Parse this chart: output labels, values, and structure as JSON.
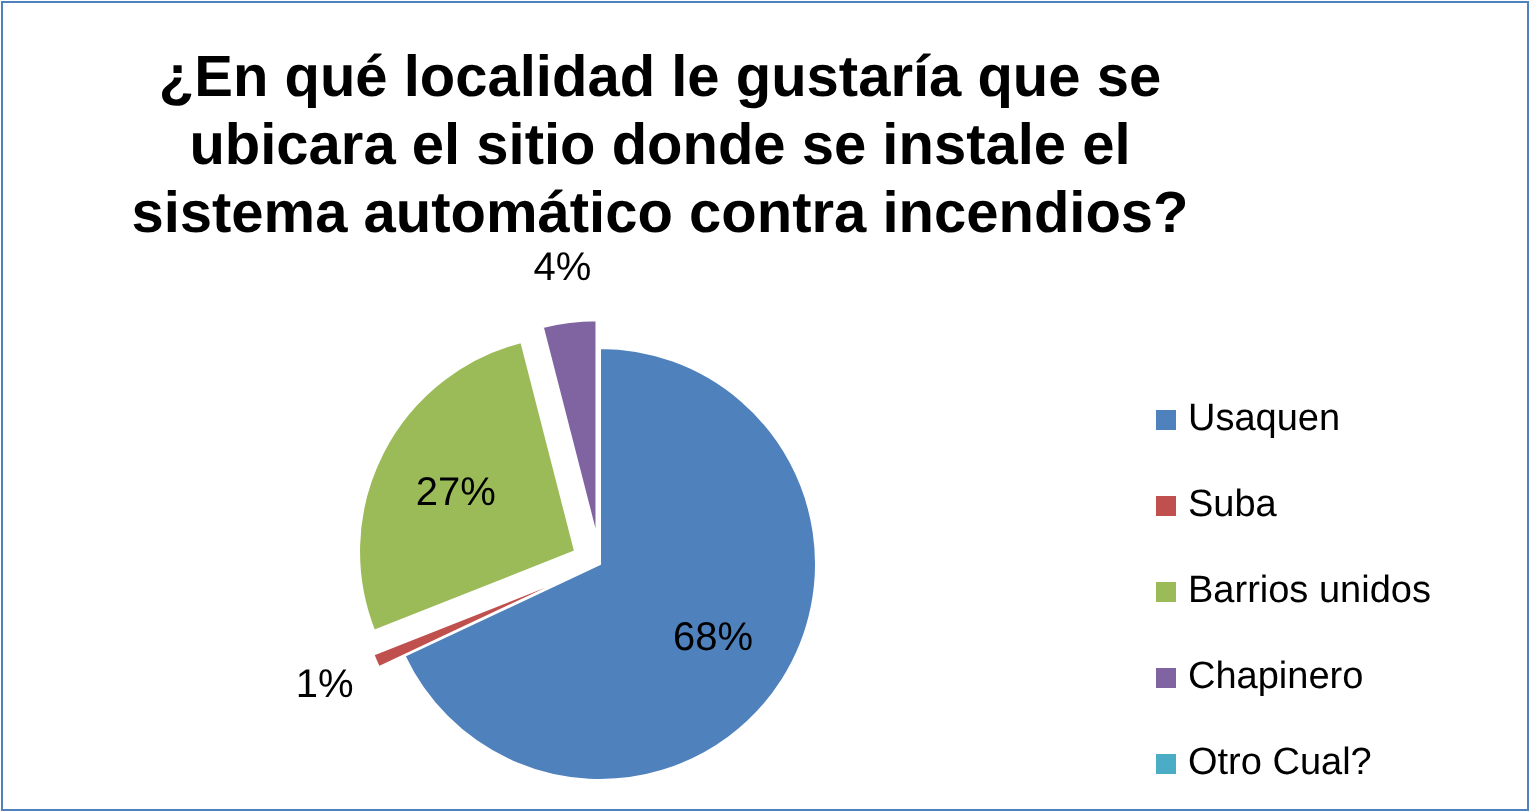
{
  "chart_data": {
    "type": "pie",
    "title": "¿En qué localidad le gustaría que se ubicara el sitio donde se instale el sistema automático contra incendios?",
    "categories": [
      "Usaquen",
      "Suba",
      "Barrios unidos",
      "Chapinero",
      "Otro Cual?"
    ],
    "values": [
      68,
      1,
      27,
      4,
      0
    ],
    "colors": [
      "#4f81bd",
      "#c0504d",
      "#9bbb59",
      "#8064a2",
      "#4bacc6"
    ],
    "value_labels": [
      "68%",
      "1%",
      "27%",
      "4%",
      null
    ],
    "legend": "right"
  }
}
